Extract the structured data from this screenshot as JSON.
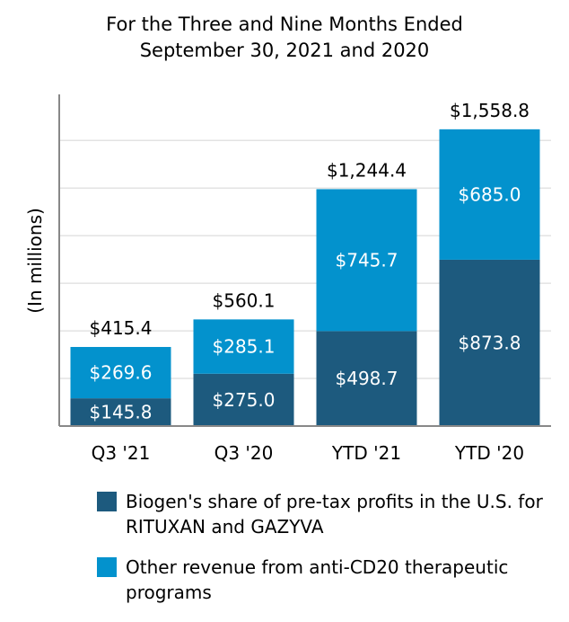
{
  "title_line1": "For the Three and Nine Months Ended",
  "title_line2": "September 30, 2021 and 2020",
  "chart_data": {
    "type": "bar",
    "stacked": true,
    "categories": [
      "Q3 '21",
      "Q3 '20",
      "YTD '21",
      "YTD '20"
    ],
    "ylabel": "(In millions)",
    "ylim": [
      0,
      1700
    ],
    "grid": true,
    "legend_position": "bottom",
    "series": [
      {
        "name": "Biogen's share of pre-tax profits in the U.S. for RITUXAN and GAZYVA",
        "color": "#1d5a7e",
        "values": [
          145.8,
          275.0,
          498.7,
          873.8
        ],
        "labels": [
          "$145.8",
          "$275.0",
          "$498.7",
          "$873.8"
        ]
      },
      {
        "name": "Other revenue from anti-CD20 therapeutic programs",
        "color": "#0392cd",
        "values": [
          269.6,
          285.1,
          745.7,
          685.0
        ],
        "labels": [
          "$269.6",
          "$285.1",
          "$745.7",
          "$685.0"
        ]
      }
    ],
    "totals": [
      415.4,
      560.1,
      1244.4,
      1558.8
    ],
    "total_labels": [
      "$415.4",
      "$560.1",
      "$1,244.4",
      "$1,558.8"
    ]
  }
}
